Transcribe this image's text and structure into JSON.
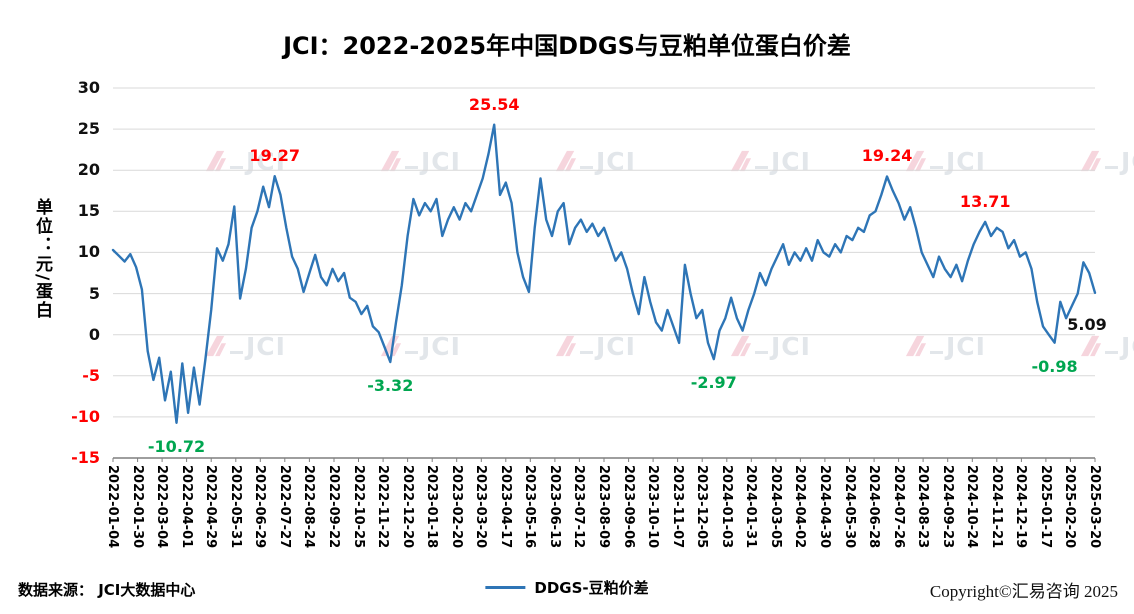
{
  "page": {
    "watermark_text": "JCI",
    "footer": {
      "source_label": "数据来源： JCI大数据中心",
      "copyright": "Copyright©汇易咨询 2025"
    }
  },
  "chart_data": {
    "type": "line",
    "title": "JCI：2022-2025年中国DDGS与豆粕单位蛋白价差",
    "xlabel": "",
    "ylabel": "单位：元/蛋白",
    "ylim": [
      -15,
      30
    ],
    "ytick_step": 5,
    "grid": true,
    "legend": {
      "position": "bottom",
      "entries": [
        {
          "label": "DDGS-豆粕价差",
          "color": "#2E75B6"
        }
      ]
    },
    "colors": {
      "line": "#2E75B6",
      "negative_tick": "#FF0000",
      "positive_tick": "#111111",
      "grid": "#d9d9d9",
      "axis": "#7f7f7f",
      "annotation_high": "#FF0000",
      "annotation_low": "#00A650",
      "annotation_end": "#111111"
    },
    "x_tick_labels": [
      "2022-01-04",
      "2022-01-30",
      "2022-03-04",
      "2022-04-01",
      "2022-04-29",
      "2022-05-31",
      "2022-06-29",
      "2022-07-27",
      "2022-08-24",
      "2022-09-22",
      "2022-10-25",
      "2022-11-22",
      "2022-12-20",
      "2023-01-18",
      "2023-02-20",
      "2023-03-20",
      "2023-04-17",
      "2023-05-16",
      "2023-06-13",
      "2023-07-12",
      "2023-08-09",
      "2023-09-06",
      "2023-10-10",
      "2023-11-07",
      "2023-12-05",
      "2024-01-03",
      "2024-01-31",
      "2024-03-05",
      "2024-04-02",
      "2024-04-30",
      "2024-05-30",
      "2024-06-28",
      "2024-07-26",
      "2024-08-23",
      "2024-09-23",
      "2024-10-24",
      "2024-11-21",
      "2024-12-19",
      "2025-01-17",
      "2025-02-20",
      "2025-03-20"
    ],
    "series": [
      {
        "name": "DDGS-豆粕价差",
        "color": "#2E75B6",
        "values": [
          10.3,
          9.6,
          8.9,
          9.8,
          8.2,
          5.5,
          -2.0,
          -5.5,
          -2.8,
          -8.0,
          -4.5,
          -10.72,
          -3.5,
          -9.5,
          -4.0,
          -8.5,
          -3.0,
          3.0,
          10.5,
          9.0,
          11.0,
          15.6,
          4.4,
          8.0,
          13.0,
          15.0,
          18.0,
          15.5,
          19.27,
          17.0,
          13.0,
          9.5,
          8.0,
          5.2,
          7.5,
          9.7,
          7.0,
          6.0,
          8.0,
          6.5,
          7.5,
          4.5,
          4.0,
          2.5,
          3.5,
          1.0,
          0.3,
          -1.5,
          -3.32,
          1.5,
          6.0,
          12.0,
          16.5,
          14.5,
          16.0,
          15.0,
          16.5,
          12.0,
          14.0,
          15.5,
          14.0,
          16.0,
          15.0,
          17.0,
          19.0,
          22.0,
          25.54,
          17.0,
          18.5,
          16.0,
          10.0,
          7.0,
          5.2,
          13.0,
          19.0,
          14.0,
          12.0,
          15.0,
          16.0,
          11.0,
          13.0,
          14.0,
          12.5,
          13.5,
          12.0,
          13.0,
          11.0,
          9.0,
          10.0,
          8.0,
          5.0,
          2.5,
          7.0,
          4.0,
          1.5,
          0.5,
          3.0,
          1.0,
          -1.0,
          8.5,
          5.0,
          2.0,
          3.0,
          -1.0,
          -2.97,
          0.5,
          2.0,
          4.5,
          2.0,
          0.5,
          3.0,
          5.0,
          7.5,
          6.0,
          8.0,
          9.5,
          11.0,
          8.5,
          10.0,
          9.0,
          10.5,
          9.0,
          11.5,
          10.0,
          9.5,
          11.0,
          10.0,
          12.0,
          11.5,
          13.0,
          12.5,
          14.5,
          15.0,
          17.0,
          19.24,
          17.5,
          16.0,
          14.0,
          15.5,
          13.0,
          10.0,
          8.5,
          7.0,
          9.5,
          8.0,
          7.0,
          8.5,
          6.5,
          9.0,
          11.0,
          12.5,
          13.71,
          12.0,
          13.0,
          12.5,
          10.5,
          11.5,
          9.5,
          10.0,
          8.0,
          4.0,
          1.0,
          0.0,
          -0.98,
          4.0,
          2.0,
          3.5,
          5.0,
          8.8,
          7.5,
          5.09
        ]
      }
    ],
    "annotations": [
      {
        "text": "-10.72",
        "value": -10.72,
        "at_index": 11,
        "color": "#00A650",
        "placement": "below"
      },
      {
        "text": "19.27",
        "value": 19.27,
        "at_index": 28,
        "color": "#FF0000",
        "placement": "above"
      },
      {
        "text": "-3.32",
        "value": -3.32,
        "at_index": 48,
        "color": "#00A650",
        "placement": "below"
      },
      {
        "text": "25.54",
        "value": 25.54,
        "at_index": 66,
        "color": "#FF0000",
        "placement": "above"
      },
      {
        "text": "-2.97",
        "value": -2.97,
        "at_index": 104,
        "color": "#00A650",
        "placement": "below"
      },
      {
        "text": "19.24",
        "value": 19.24,
        "at_index": 134,
        "color": "#FF0000",
        "placement": "above"
      },
      {
        "text": "13.71",
        "value": 13.71,
        "at_index": 151,
        "color": "#FF0000",
        "placement": "above"
      },
      {
        "text": "-0.98",
        "value": -0.98,
        "at_index": 163,
        "color": "#00A650",
        "placement": "below"
      },
      {
        "text": "5.09",
        "value": 5.09,
        "at_index": 170,
        "color": "#111111",
        "placement": "end"
      }
    ]
  }
}
